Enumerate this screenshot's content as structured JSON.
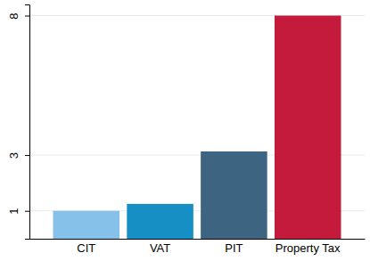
{
  "chart_data": {
    "type": "bar",
    "categories": [
      "CIT",
      "VAT",
      "PIT",
      "Property Tax"
    ],
    "values": [
      1,
      1.25,
      3.13,
      8
    ],
    "colors": [
      "#85c1e9",
      "#168fc4",
      "#3d6480",
      "#c41a3b"
    ],
    "ylim": [
      0,
      8.4
    ],
    "yticks": [
      1,
      3,
      8
    ],
    "grid": true
  }
}
